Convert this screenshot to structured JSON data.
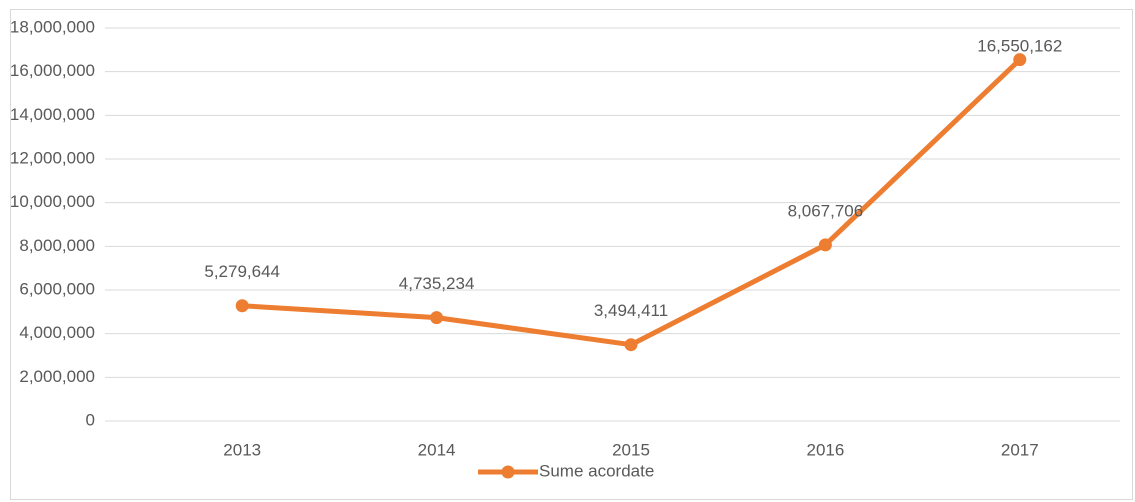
{
  "chart_data": {
    "type": "line",
    "categories": [
      "2013",
      "2014",
      "2015",
      "2016",
      "2017"
    ],
    "series": [
      {
        "name": "Sume acordate",
        "color": "#ed7d31",
        "values": [
          5279644,
          4735234,
          3494411,
          8067706,
          16550162
        ],
        "value_labels": [
          "5,279,644",
          "4,735,234",
          "3,494,411",
          "8,067,706",
          "16,550,162"
        ]
      }
    ],
    "ylim": [
      0,
      18000000
    ],
    "yticks": [
      0,
      {
        "value": 2000000,
        "label": "2,000,000"
      },
      {
        "value": 4000000,
        "label": "4,000,000"
      },
      {
        "value": 6000000,
        "label": "6,000,000"
      },
      {
        "value": 8000000,
        "label": "8,000,000"
      },
      {
        "value": 10000000,
        "label": "10,000,000"
      },
      {
        "value": 12000000,
        "label": "12,000,000"
      },
      {
        "value": 14000000,
        "label": "14,000,000"
      },
      {
        "value": 16000000,
        "label": "16,000,000"
      },
      {
        "value": 18000000,
        "label": "18,000,000"
      }
    ],
    "grid": true,
    "legend": "bottom"
  }
}
